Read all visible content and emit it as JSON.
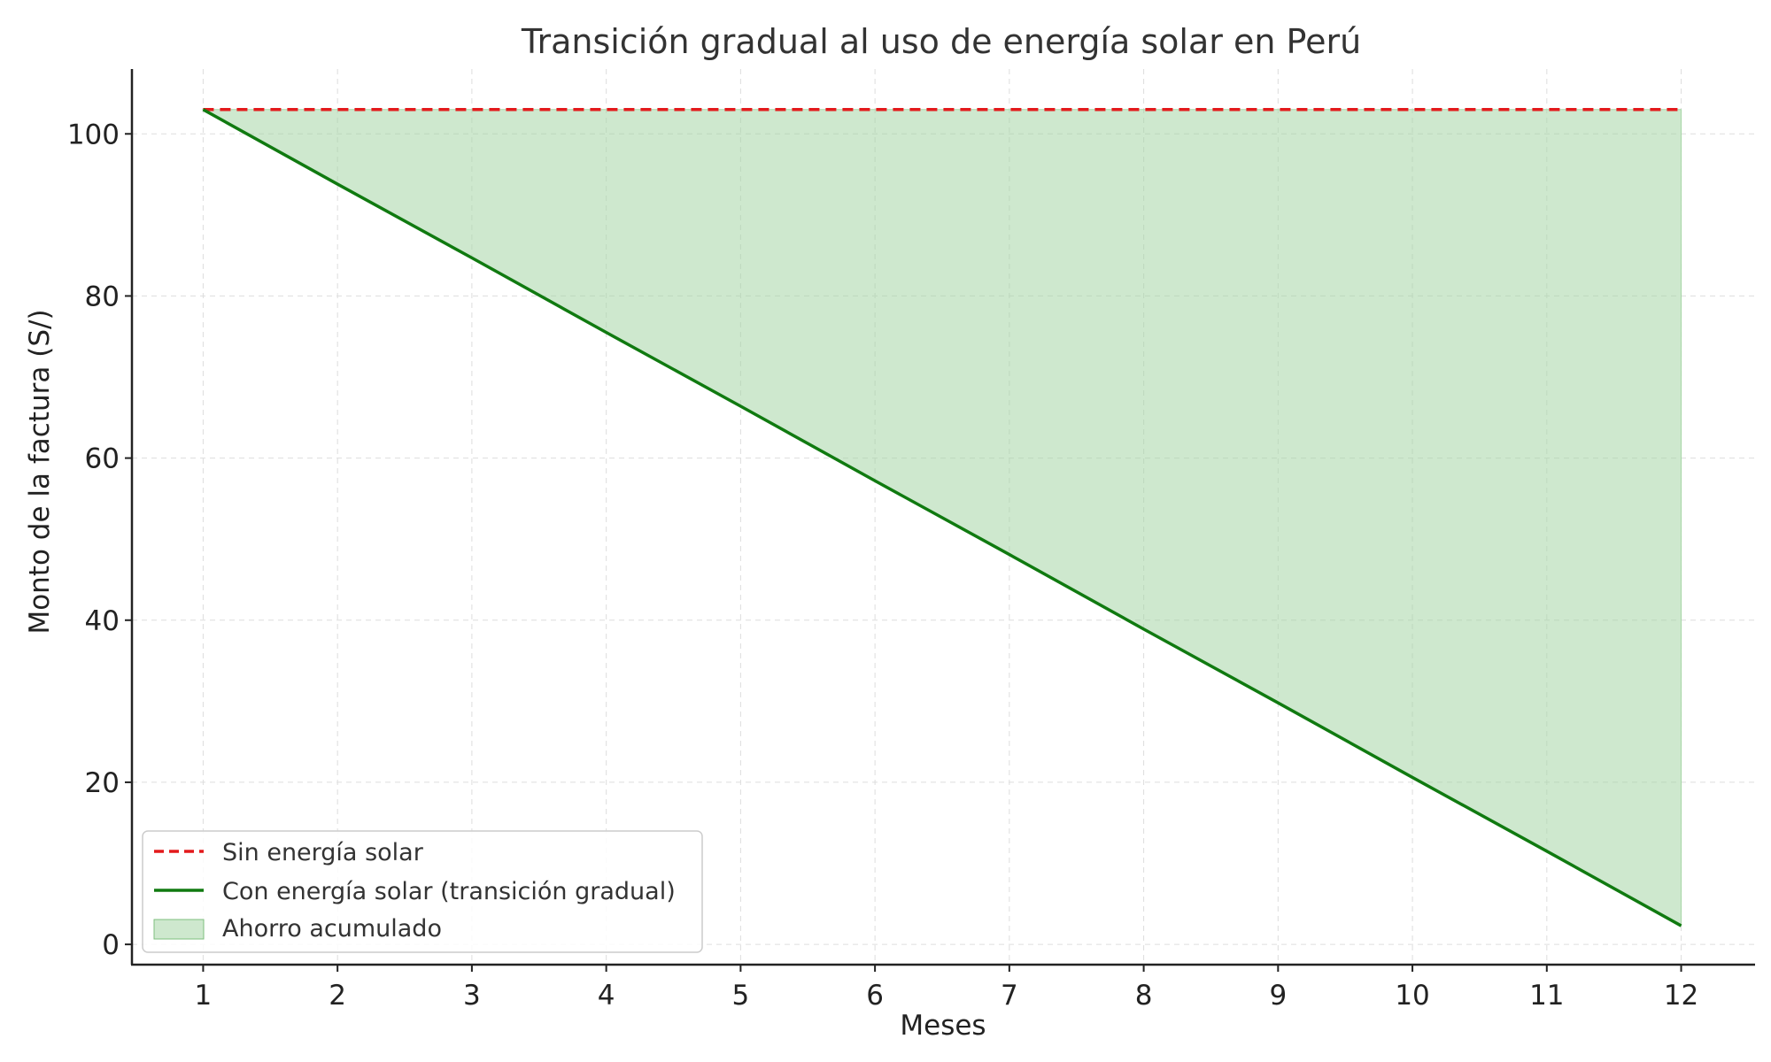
{
  "chart_data": {
    "type": "line",
    "title": "Transición gradual al uso de energía solar en Perú",
    "xlabel": "Meses",
    "ylabel": "Monto de la factura (S/)",
    "x": [
      1,
      2,
      3,
      4,
      5,
      6,
      7,
      8,
      9,
      10,
      11,
      12
    ],
    "xlim": [
      0.47,
      12.55
    ],
    "ylim": [
      -2.5,
      108
    ],
    "xticks": [
      1,
      2,
      3,
      4,
      5,
      6,
      7,
      8,
      9,
      10,
      11,
      12
    ],
    "yticks": [
      0,
      20,
      40,
      60,
      80,
      100
    ],
    "grid": true,
    "legend_position": "lower-left",
    "series": [
      {
        "name": "Sin energía solar",
        "style": "dashed",
        "color": "#e31a1c",
        "values": [
          103,
          103,
          103,
          103,
          103,
          103,
          103,
          103,
          103,
          103,
          103,
          103
        ]
      },
      {
        "name": "Con energía solar (transición gradual)",
        "style": "solid",
        "color": "#107a10",
        "values": [
          103,
          93.8,
          84.7,
          75.5,
          66.4,
          57.2,
          48.1,
          38.9,
          29.8,
          20.6,
          11.5,
          2.3
        ]
      }
    ],
    "fill": {
      "name": "Ahorro acumulado",
      "color": "#a6d6a6",
      "between": [
        "Sin energía solar",
        "Con energía solar (transición gradual)"
      ]
    }
  }
}
